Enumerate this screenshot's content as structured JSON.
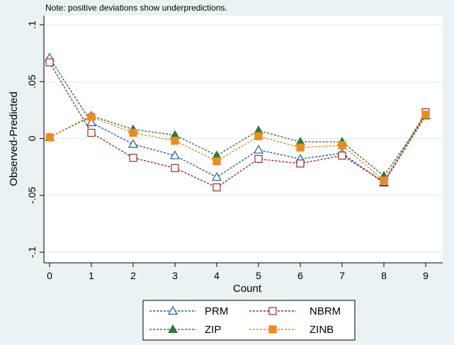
{
  "chart_data": {
    "type": "line",
    "title": "",
    "note": "Note: positive deviations show underpredictions.",
    "xlabel": "Count",
    "ylabel": "Observed-Predicted",
    "x": [
      0,
      1,
      2,
      3,
      4,
      5,
      6,
      7,
      8,
      9
    ],
    "xticks": [
      "0",
      "1",
      "2",
      "3",
      "4",
      "5",
      "6",
      "7",
      "8",
      "9"
    ],
    "yticks": [
      {
        "value": -0.1,
        "label": "-.1"
      },
      {
        "value": -0.05,
        "label": "-.05"
      },
      {
        "value": 0,
        "label": "0"
      },
      {
        "value": 0.05,
        "label": ".05"
      },
      {
        "value": 0.1,
        "label": ".1"
      }
    ],
    "xlim": [
      0,
      9
    ],
    "ylim": [
      -0.1,
      0.1
    ],
    "grid": true,
    "legend_position": "bottom",
    "series": [
      {
        "name": "PRM",
        "color": "#1f5a9e",
        "marker": "triangle-hollow",
        "values": [
          0.071,
          0.014,
          -0.005,
          -0.015,
          -0.034,
          -0.01,
          -0.018,
          -0.013,
          -0.039,
          0.02
        ]
      },
      {
        "name": "NBRM",
        "color": "#9e2b25",
        "marker": "square-hollow",
        "values": [
          0.067,
          0.005,
          -0.017,
          -0.026,
          -0.043,
          -0.018,
          -0.022,
          -0.015,
          -0.038,
          0.023
        ]
      },
      {
        "name": "ZIP",
        "color": "#2f7a3b",
        "marker": "triangle-filled",
        "values": [
          0.001,
          0.02,
          0.008,
          0.003,
          -0.015,
          0.007,
          -0.003,
          -0.003,
          -0.033,
          0.02
        ]
      },
      {
        "name": "ZINB",
        "color": "#f08a1c",
        "marker": "square-filled",
        "values": [
          0.001,
          0.019,
          0.005,
          -0.002,
          -0.02,
          0.002,
          -0.008,
          -0.006,
          -0.037,
          0.021
        ]
      }
    ]
  }
}
